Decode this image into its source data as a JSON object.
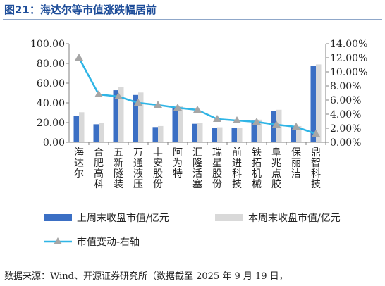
{
  "title": "图21：海达尔等市值涨跌幅居前",
  "source": "数据来源：Wind、开源证券研究所（数据截至 2025 年 9 月 19 日，",
  "chart_data": {
    "type": "bar",
    "categories": [
      "海达尔",
      "合肥高科",
      "五新隧装",
      "万通液压",
      "丰安股份",
      "阿为特",
      "汇隆活塞",
      "瑞星股份",
      "前进科技",
      "铁拓机械",
      "阜兆点胶",
      "保丽洁",
      "鼎智科技"
    ],
    "series": [
      {
        "name": "上周末收盘市值/亿元",
        "type": "bar",
        "axis": "left",
        "color": "#3b6fc4",
        "values": [
          27.0,
          18.3,
          52.8,
          48.0,
          15.5,
          34.8,
          18.8,
          14.8,
          14.3,
          22.0,
          31.5,
          16.0,
          77.5
        ]
      },
      {
        "name": "本周末收盘市值/亿元",
        "type": "bar",
        "axis": "left",
        "color": "#d9d9d9",
        "values": [
          30.5,
          19.5,
          56.0,
          50.5,
          16.5,
          36.5,
          19.8,
          15.3,
          14.8,
          23.0,
          33.0,
          16.5,
          79.0
        ]
      },
      {
        "name": "市值变动-右轴",
        "type": "line",
        "axis": "right",
        "color": "#2fb5e6",
        "marker_color": "#a6a6a6",
        "values": [
          12.0,
          6.8,
          6.5,
          5.6,
          5.3,
          4.9,
          4.6,
          3.3,
          3.1,
          2.9,
          2.5,
          2.2,
          1.2
        ]
      }
    ],
    "y_left": {
      "min": 0,
      "max": 100,
      "step": 20,
      "tick_labels": [
        "0.00",
        "20.00",
        "40.00",
        "60.00",
        "80.00",
        "100.00"
      ]
    },
    "y_right": {
      "min": 0,
      "max": 14,
      "step": 2,
      "tick_labels": [
        "0.00%",
        "2.00%",
        "4.00%",
        "6.00%",
        "8.00%",
        "10.00%",
        "12.00%",
        "14.00%"
      ]
    },
    "legend_position": "bottom",
    "grid": false
  }
}
